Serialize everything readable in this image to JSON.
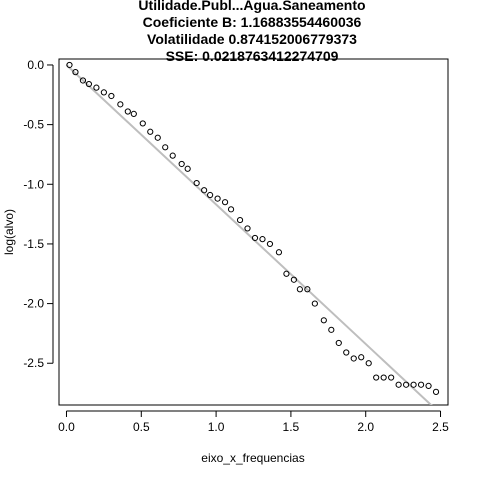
{
  "chart_data": {
    "type": "scatter",
    "title_lines": [
      "Utilidade.Publ...Agua.Saneamento",
      "Coeficiente B:  1.16883554460036",
      "Volatilidade 0.874152006779373",
      "SSE: 0.0218763412274709"
    ],
    "xlabel": "eixo_x_frequencias",
    "ylabel": "log(alvo)",
    "xlim": [
      -0.05,
      2.55
    ],
    "ylim": [
      -2.85,
      0.05
    ],
    "x_ticks": [
      "0.0",
      "0.5",
      "1.0",
      "1.5",
      "2.0",
      "2.5"
    ],
    "y_ticks": [
      "0.0",
      "-0.5",
      "-1.0",
      "-1.5",
      "-2.0",
      "-2.5"
    ],
    "grid": false,
    "fit_line": {
      "x": [
        0.0,
        2.48
      ],
      "y": [
        0.0,
        -2.9
      ],
      "color": "#bebebe"
    },
    "points_color": "#000000",
    "x": [
      0.02,
      0.06,
      0.11,
      0.15,
      0.2,
      0.25,
      0.3,
      0.36,
      0.41,
      0.45,
      0.51,
      0.56,
      0.61,
      0.66,
      0.71,
      0.77,
      0.81,
      0.87,
      0.92,
      0.96,
      1.01,
      1.06,
      1.1,
      1.16,
      1.21,
      1.26,
      1.31,
      1.36,
      1.42,
      1.47,
      1.52,
      1.56,
      1.61,
      1.66,
      1.72,
      1.77,
      1.82,
      1.87,
      1.92,
      1.97,
      2.02,
      2.07,
      2.12,
      2.17,
      2.22,
      2.27,
      2.32,
      2.37,
      2.42,
      2.47
    ],
    "y": [
      0.0,
      -0.06,
      -0.13,
      -0.16,
      -0.19,
      -0.23,
      -0.26,
      -0.33,
      -0.39,
      -0.41,
      -0.49,
      -0.56,
      -0.61,
      -0.69,
      -0.76,
      -0.83,
      -0.87,
      -0.99,
      -1.05,
      -1.09,
      -1.12,
      -1.15,
      -1.21,
      -1.3,
      -1.37,
      -1.45,
      -1.46,
      -1.5,
      -1.57,
      -1.75,
      -1.8,
      -1.88,
      -1.88,
      -2.0,
      -2.14,
      -2.22,
      -2.33,
      -2.41,
      -2.46,
      -2.45,
      -2.5,
      -2.62,
      -2.62,
      -2.62,
      -2.68,
      -2.68,
      -2.68,
      -2.68,
      -2.69,
      -2.74
    ]
  }
}
